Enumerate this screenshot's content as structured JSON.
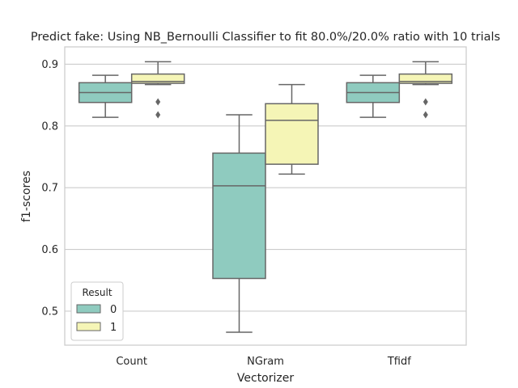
{
  "chart_data": {
    "type": "box",
    "title": "Predict fake: Using NB_Bernoulli Classifier to fit 80.0%/20.0% ratio with 10 trials",
    "xlabel": "Vectorizer",
    "ylabel": "f1-scores",
    "ylim": [
      0.445,
      0.928
    ],
    "yticks": [
      0.5,
      0.6,
      0.7,
      0.8,
      0.9
    ],
    "ytick_labels": [
      "0.5",
      "0.6",
      "0.7",
      "0.8",
      "0.9"
    ],
    "categories": [
      "Count",
      "NGram",
      "Tfidf"
    ],
    "grid": "horizontal",
    "legend": {
      "title": "Result",
      "placement": "lower-left"
    },
    "series": [
      {
        "name": "0",
        "color": "#8fcbbf",
        "boxes": [
          {
            "whisker_low": 0.814,
            "q1": 0.838,
            "median": 0.854,
            "q3": 0.87,
            "whisker_high": 0.882,
            "outliers": []
          },
          {
            "whisker_low": 0.466,
            "q1": 0.553,
            "median": 0.703,
            "q3": 0.756,
            "whisker_high": 0.818,
            "outliers": []
          },
          {
            "whisker_low": 0.814,
            "q1": 0.838,
            "median": 0.854,
            "q3": 0.87,
            "whisker_high": 0.882,
            "outliers": []
          }
        ]
      },
      {
        "name": "1",
        "color": "#f5f5b6",
        "boxes": [
          {
            "whisker_low": 0.867,
            "q1": 0.869,
            "median": 0.872,
            "q3": 0.884,
            "whisker_high": 0.904,
            "outliers": [
              0.839,
              0.818
            ]
          },
          {
            "whisker_low": 0.722,
            "q1": 0.738,
            "median": 0.809,
            "q3": 0.836,
            "whisker_high": 0.867,
            "outliers": []
          },
          {
            "whisker_low": 0.867,
            "q1": 0.869,
            "median": 0.872,
            "q3": 0.884,
            "whisker_high": 0.904,
            "outliers": [
              0.839,
              0.818
            ]
          }
        ]
      }
    ]
  }
}
